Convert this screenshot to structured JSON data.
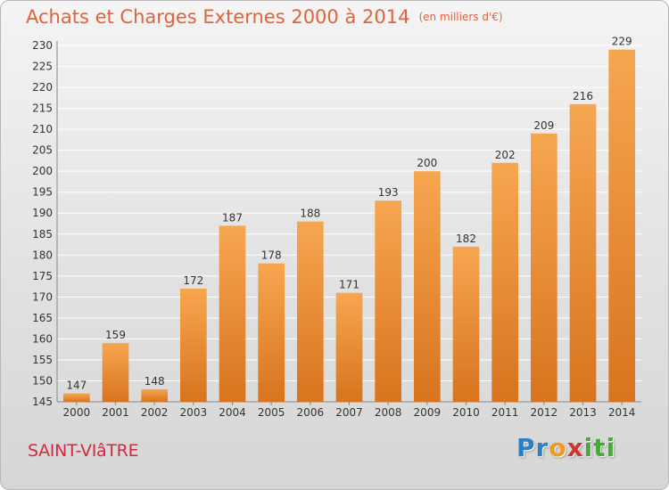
{
  "header": {
    "title": "Achats et Charges Externes 2000 à 2014",
    "subtitle": "(en milliers d'€)"
  },
  "footer": {
    "place": "SAINT-VIâTRE",
    "logo_letters": [
      {
        "ch": "P",
        "color": "#2f7fc6"
      },
      {
        "ch": "r",
        "color": "#2f7fc6"
      },
      {
        "ch": "o",
        "color": "#f09a24"
      },
      {
        "ch": "x",
        "color": "#d3342c"
      },
      {
        "ch": "i",
        "color": "#4aa83a"
      },
      {
        "ch": "t",
        "color": "#4aa83a"
      },
      {
        "ch": "i",
        "color": "#4aa83a"
      }
    ]
  },
  "colors": {
    "bar_top": "#f7a650",
    "bar_bottom": "#d8741e",
    "title": "#e0633a",
    "grid": "#ffffff",
    "place": "#d4283c"
  },
  "chart_data": {
    "type": "bar",
    "title": "Achats et Charges Externes 2000 à 2014",
    "subtitle": "(en milliers d'€)",
    "categories": [
      "2000",
      "2001",
      "2002",
      "2003",
      "2004",
      "2005",
      "2006",
      "2007",
      "2008",
      "2009",
      "2010",
      "2011",
      "2012",
      "2013",
      "2014"
    ],
    "values": [
      147,
      159,
      148,
      172,
      187,
      178,
      188,
      171,
      193,
      200,
      182,
      202,
      209,
      216,
      229
    ],
    "ylim": [
      145,
      230
    ],
    "yticks": [
      145,
      150,
      155,
      160,
      165,
      170,
      175,
      180,
      185,
      190,
      195,
      200,
      205,
      210,
      215,
      220,
      225,
      230
    ],
    "grid": true,
    "data_labels": true
  }
}
